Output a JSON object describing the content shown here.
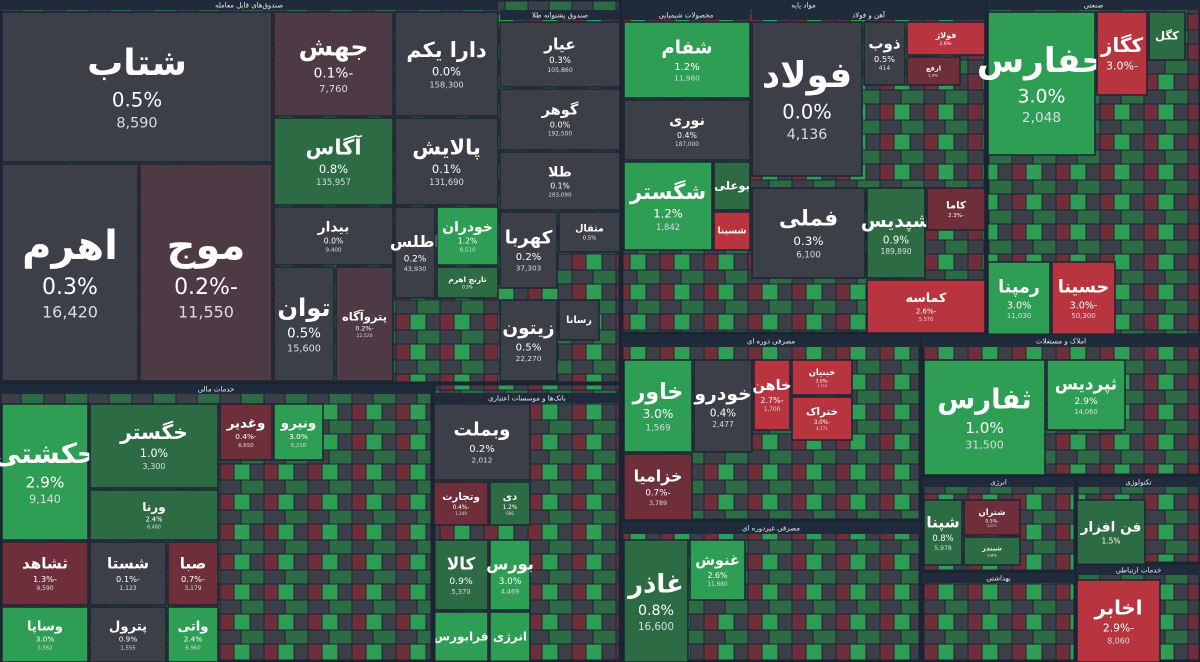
{
  "sectors": [
    {
      "title": "صندوق‌های قابل معامله",
      "tiles": [
        {
          "name": "شتاب",
          "change": "0.5%",
          "price": "8,590"
        },
        {
          "name": "اهرم",
          "change": "0.3%",
          "price": "16,420"
        },
        {
          "name": "موج",
          "change": "-0.2%",
          "price": "11,550"
        },
        {
          "name": "جهش",
          "change": "-0.1%",
          "price": "7,760"
        },
        {
          "name": "دارا یکم",
          "change": "0.0%",
          "price": "158,300"
        },
        {
          "name": "آگاس",
          "change": "0.8%",
          "price": "135,957"
        },
        {
          "name": "پالایش",
          "change": "0.1%",
          "price": "131,690"
        },
        {
          "name": "بیدار",
          "change": "0.0%",
          "price": "9,400"
        },
        {
          "name": "توان",
          "change": "0.5%",
          "price": "15,600"
        },
        {
          "name": "پتروآگاه",
          "change": "-0.2%",
          "price": "12,520"
        },
        {
          "name": "اطلس",
          "change": "0.2%",
          "price": "43,930"
        },
        {
          "name": "خودران",
          "change": "1.2%",
          "price": "8,510"
        },
        {
          "name": "تارنج اهرم",
          "change": "0.5%"
        }
      ]
    },
    {
      "title": "صندوق پشتوانه طلا",
      "tiles": [
        {
          "name": "عیار",
          "change": "0.3%",
          "price": "105,860"
        },
        {
          "name": "گوهر",
          "change": "0.0%",
          "price": "192,500"
        },
        {
          "name": "طلا",
          "change": "0.1%",
          "price": "283,090"
        },
        {
          "name": "کهربا",
          "change": "0.2%",
          "price": "37,303"
        },
        {
          "name": "مثقال",
          "change": "0.5%"
        },
        {
          "name": "زیتون",
          "change": "0.5%",
          "price": "22,270"
        },
        {
          "name": "رسانا"
        }
      ]
    },
    {
      "title": "مواد پایه"
    },
    {
      "title": "محصولات شیمیایی",
      "tiles": [
        {
          "name": "شفام",
          "change": "1.2%",
          "price": "11,980"
        },
        {
          "name": "نوری",
          "change": "0.4%",
          "price": "187,000"
        },
        {
          "name": "شگستر",
          "change": "1.2%",
          "price": "1,842"
        },
        {
          "name": "بوعلی"
        },
        {
          "name": "شسینا"
        }
      ]
    },
    {
      "title": "آهن و فولاد",
      "tiles": [
        {
          "name": "فولاد",
          "change": "0.0%",
          "price": "4,136"
        },
        {
          "name": "ذوب",
          "change": "0.5%",
          "price": "414"
        },
        {
          "name": "فولاژ",
          "change": "-2.6%"
        },
        {
          "name": "ارفع",
          "change": "-1.3%"
        },
        {
          "name": "فملی",
          "change": "0.3%",
          "price": "6,100"
        },
        {
          "name": "شپدیس",
          "change": "0.9%",
          "price": "189,890"
        },
        {
          "name": "کاما",
          "change": "-2.3%"
        },
        {
          "name": "کماسه",
          "change": "-2.6%",
          "price": "5,570"
        }
      ]
    },
    {
      "title": "صنعتی",
      "tiles": [
        {
          "name": "حفارس",
          "change": "3.0%",
          "price": "2,048"
        },
        {
          "name": "کگاز",
          "change": "-3.0%"
        },
        {
          "name": "کگل"
        },
        {
          "name": "رمپنا",
          "change": "3.0%",
          "price": "11,030"
        },
        {
          "name": "حسینا",
          "change": "-3.0%",
          "price": "50,300"
        }
      ]
    },
    {
      "title": "خدمات مالی",
      "tiles": [
        {
          "name": "حکشتی",
          "change": "2.9%",
          "price": "9,140"
        },
        {
          "name": "خگستر",
          "change": "1.0%",
          "price": "3,300"
        },
        {
          "name": "ورنا",
          "change": "2.4%",
          "price": "6,480"
        },
        {
          "name": "ثشاهد",
          "change": "-1.3%",
          "price": "9,590"
        },
        {
          "name": "وساپا",
          "change": "3.0%",
          "price": "3,562"
        },
        {
          "name": "شستا",
          "change": "-0.1%",
          "price": "1,123"
        },
        {
          "name": "پترول",
          "change": "0.9%",
          "price": "1,555"
        },
        {
          "name": "صبا",
          "change": "-0.7%",
          "price": "3,179"
        },
        {
          "name": "واتی",
          "change": "2.4%",
          "price": "6,960"
        },
        {
          "name": "وغدیر",
          "change": "-0.4%",
          "price": "6,650"
        },
        {
          "name": "ونیرو",
          "change": "3.0%",
          "price": "5,210"
        },
        {
          "name": "کالا",
          "change": "0.9%",
          "price": "5,370"
        },
        {
          "name": "بورس",
          "change": "3.0%",
          "price": "4,469"
        },
        {
          "name": "فرابورس"
        },
        {
          "name": "انرژی"
        }
      ]
    },
    {
      "title": "بانک‌ها و موسسات اعتباری",
      "tiles": [
        {
          "name": "وبملت",
          "change": "0.2%",
          "price": "2,012"
        },
        {
          "name": "وتجارت",
          "change": "-0.4%",
          "price": "1,349"
        },
        {
          "name": "دی",
          "change": "1.2%",
          "price": "686"
        }
      ]
    },
    {
      "title": "مصرفی دوره ای",
      "tiles": [
        {
          "name": "خاور",
          "change": "3.0%",
          "price": "1,569"
        },
        {
          "name": "خودرو",
          "change": "0.4%",
          "price": "2,477"
        },
        {
          "name": "خزامیا",
          "change": "-0.7%",
          "price": "3,789"
        },
        {
          "name": "خاهن",
          "change": "-2.7%",
          "price": "1,700"
        },
        {
          "name": "خبنیان",
          "change": "-3.0%",
          "price": "1,753"
        },
        {
          "name": "ختراک",
          "change": "-3.0%",
          "price": "4,771"
        }
      ]
    },
    {
      "title": "املاک و مستغلات",
      "tiles": [
        {
          "name": "ثفارس",
          "change": "1.0%",
          "price": "31,500"
        },
        {
          "name": "ثپردیس",
          "change": "2.9%",
          "price": "14,060"
        }
      ]
    },
    {
      "title": "انرژی",
      "tiles": [
        {
          "name": "شپنا",
          "change": "0.8%",
          "price": "5,978"
        },
        {
          "name": "شتران",
          "change": "-0.5%",
          "price": "3,071"
        },
        {
          "name": "شبندر",
          "change": "0.8%"
        }
      ]
    },
    {
      "title": "تکنولوژی",
      "tiles": [
        {
          "name": "فن افزار",
          "change": "1.5%"
        }
      ]
    },
    {
      "title": "بهداشتی"
    },
    {
      "title": "خدمات ارتباطی",
      "tiles": [
        {
          "name": "اخابر",
          "change": "-2.9%",
          "price": "8,060"
        }
      ]
    },
    {
      "title": "مصرفی غیردوره ای",
      "tiles": [
        {
          "name": "غاذر",
          "change": "0.8%",
          "price": "16,600"
        },
        {
          "name": "غنوش",
          "change": "2.6%",
          "price": "11,680"
        }
      ]
    }
  ]
}
